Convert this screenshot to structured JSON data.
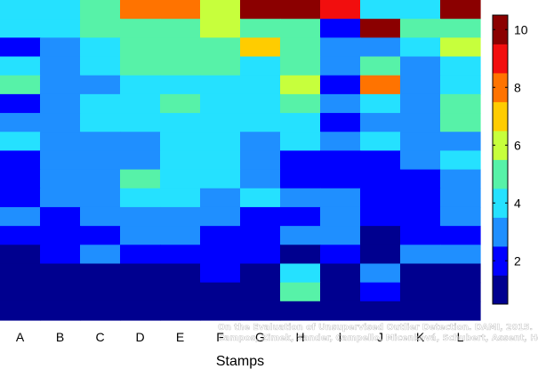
{
  "chart_data": {
    "type": "heatmap",
    "title": "",
    "xlabel": "Stamps",
    "ylabel": "",
    "x_categories": [
      "A",
      "B",
      "C",
      "D",
      "E",
      "F",
      "G",
      "H",
      "I",
      "J",
      "K",
      "L"
    ],
    "rows_top_to_bottom": [
      [
        4,
        4,
        5,
        8,
        8,
        6,
        10,
        10,
        9,
        4,
        4,
        10
      ],
      [
        4,
        4,
        5,
        5,
        5,
        6,
        5,
        5,
        2,
        10,
        5,
        5
      ],
      [
        2,
        3,
        4,
        5,
        5,
        5,
        7,
        5,
        3,
        3,
        4,
        6
      ],
      [
        4,
        3,
        4,
        5,
        5,
        5,
        4,
        5,
        3,
        5,
        3,
        4
      ],
      [
        5,
        3,
        3,
        4,
        4,
        4,
        4,
        6,
        2,
        8,
        3,
        4
      ],
      [
        2,
        3,
        4,
        4,
        5,
        4,
        4,
        5,
        3,
        4,
        3,
        5
      ],
      [
        3,
        3,
        4,
        4,
        4,
        4,
        4,
        4,
        2,
        3,
        3,
        5
      ],
      [
        4,
        3,
        3,
        3,
        4,
        4,
        3,
        4,
        3,
        4,
        3,
        3
      ],
      [
        2,
        3,
        3,
        3,
        4,
        4,
        3,
        2,
        2,
        2,
        3,
        4
      ],
      [
        2,
        3,
        3,
        5,
        4,
        4,
        3,
        2,
        2,
        2,
        2,
        3
      ],
      [
        2,
        3,
        3,
        4,
        4,
        3,
        4,
        3,
        3,
        2,
        2,
        3
      ],
      [
        3,
        2,
        3,
        3,
        3,
        3,
        2,
        2,
        3,
        2,
        2,
        3
      ],
      [
        2,
        2,
        2,
        3,
        3,
        2,
        2,
        3,
        3,
        1,
        2,
        2
      ],
      [
        1,
        2,
        3,
        2,
        2,
        2,
        2,
        1,
        2,
        1,
        3,
        3
      ],
      [
        1,
        1,
        1,
        1,
        1,
        2,
        1,
        4,
        1,
        3,
        1,
        1
      ],
      [
        1,
        1,
        1,
        1,
        1,
        1,
        1,
        5,
        1,
        2,
        1,
        1
      ],
      [
        1,
        1,
        1,
        1,
        1,
        1,
        1,
        1,
        1,
        1,
        1,
        1
      ]
    ],
    "colorbar": {
      "ticks": [
        2,
        4,
        6,
        8,
        10
      ],
      "range": [
        0.5,
        10.5
      ]
    },
    "colors_by_value": {
      "1": "#00008f",
      "2": "#0000ff",
      "3": "#1f8fff",
      "4": "#25e1ff",
      "5": "#57f2a8",
      "6": "#c7ff3c",
      "7": "#ffcc00",
      "8": "#ff7300",
      "9": "#f20e0e",
      "10": "#8b0000"
    },
    "legend": "right"
  },
  "watermark": {
    "line1": "On the Evaluation of Unsupervised Outlier Detection. DAMI, 2015.",
    "line2": "Campos, Zimek, Sander, Campello, Micenková, Schubert, Assent, Houle"
  }
}
